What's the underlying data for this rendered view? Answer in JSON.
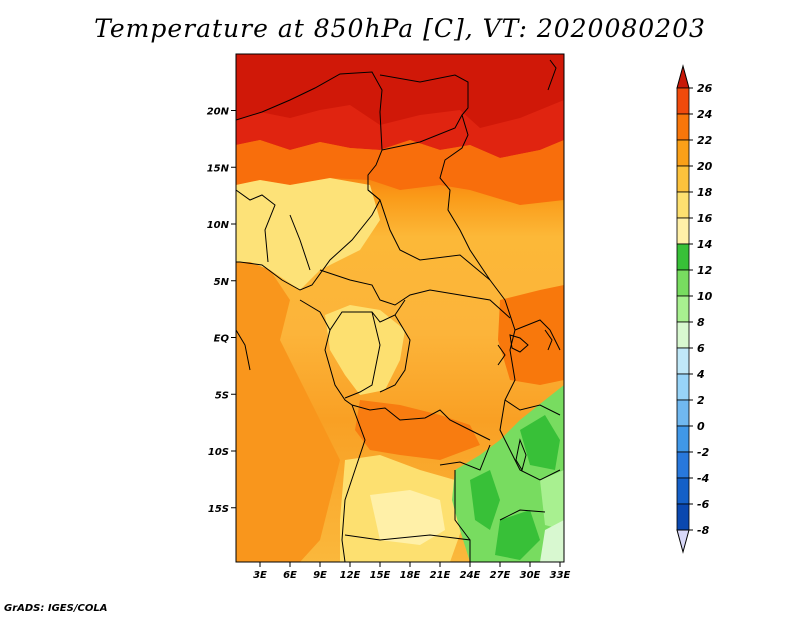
{
  "title": "Temperature at 850hPa [C], VT: 2020080203",
  "footer": "GrADS: IGES/COLA",
  "lat_ticks": [
    {
      "label": "20N",
      "lat": 20
    },
    {
      "label": "15N",
      "lat": 15
    },
    {
      "label": "10N",
      "lat": 10
    },
    {
      "label": "5N",
      "lat": 5
    },
    {
      "label": "EQ",
      "lat": 0
    },
    {
      "label": "5S",
      "lat": -5
    },
    {
      "label": "10S",
      "lat": -10
    },
    {
      "label": "15S",
      "lat": -15
    }
  ],
  "lon_ticks": [
    {
      "label": "3E",
      "lon": 3
    },
    {
      "label": "6E",
      "lon": 6
    },
    {
      "label": "9E",
      "lon": 9
    },
    {
      "label": "12E",
      "lon": 12
    },
    {
      "label": "15E",
      "lon": 15
    },
    {
      "label": "18E",
      "lon": 18
    },
    {
      "label": "21E",
      "lon": 21
    },
    {
      "label": "24E",
      "lon": 24
    },
    {
      "label": "27E",
      "lon": 27
    },
    {
      "label": "30E",
      "lon": 30
    },
    {
      "label": "33E",
      "lon": 33
    }
  ],
  "colorbar": {
    "levels": [
      "26",
      "24",
      "22",
      "20",
      "18",
      "16",
      "14",
      "12",
      "10",
      "8",
      "6",
      "4",
      "2",
      "0",
      "-2",
      "-4",
      "-6",
      "-8"
    ],
    "colors": [
      "#e02010",
      "#f04a0c",
      "#f8760a",
      "#faa018",
      "#fcc23c",
      "#fde070",
      "#fff0a8",
      "#38c038",
      "#78dc60",
      "#a8f090",
      "#d8f8d0",
      "#c0e8f8",
      "#98d4f8",
      "#70b8f0",
      "#4098e8",
      "#2878dc",
      "#1460c8",
      "#0a48b0",
      "#082c80",
      "#0c0c5c"
    ],
    "under_color": "#d8d8f8",
    "over_color": "#c81808"
  }
}
